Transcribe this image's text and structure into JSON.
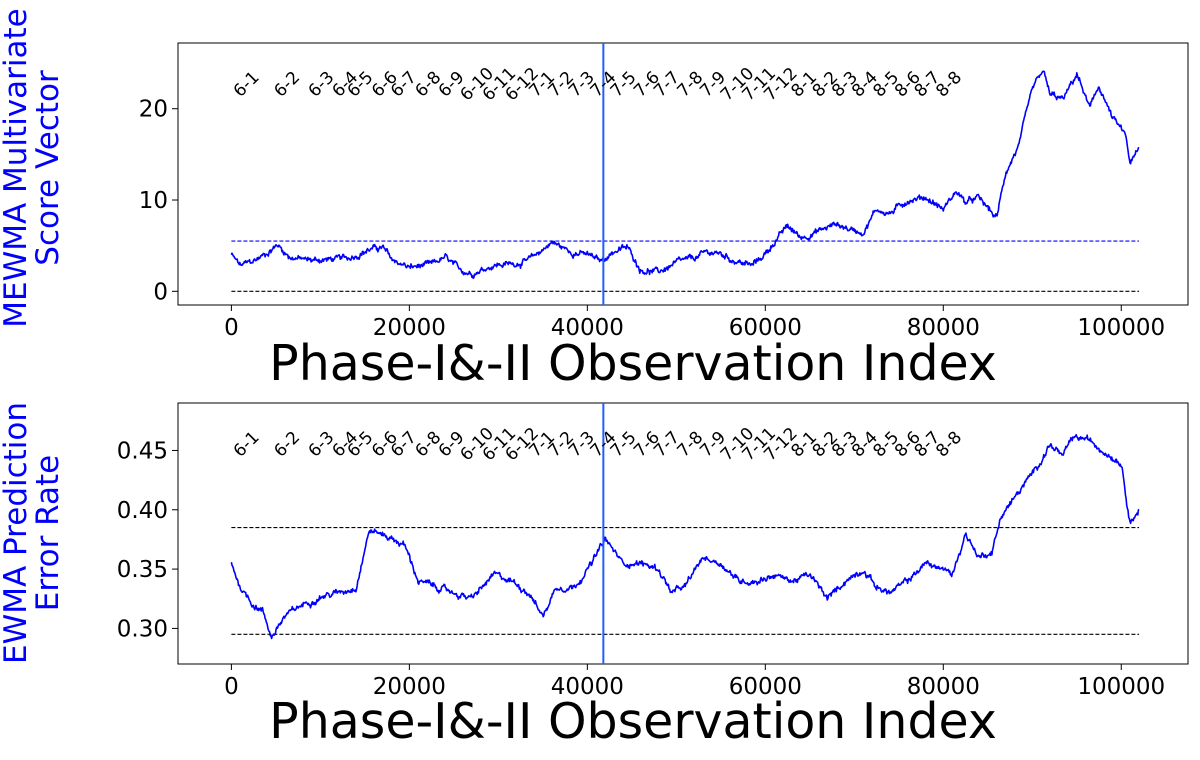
{
  "colors": {
    "series": "#0000ff",
    "ylabel": "#0000ff",
    "phase_divider": "#1f5fff",
    "limit_dashed": "#000000",
    "upper_limit_top": "#0000ff"
  },
  "month_labels": [
    "6-1",
    "6-2",
    "6-3",
    "6-4",
    "6-5",
    "6-6",
    "6-7",
    "6-8",
    "6-9",
    "6-10",
    "6-11",
    "6-12",
    "7-1",
    "7-2",
    "7-3",
    "7-4",
    "7-5",
    "7-6",
    "7-7",
    "7-8",
    "7-9",
    "7-10",
    "7-11",
    "7-12",
    "8-1",
    "8-2",
    "8-3",
    "8-4",
    "8-5",
    "8-6",
    "8-7",
    "8-8"
  ],
  "month_positions": [
    1000,
    8500,
    14800,
    19200,
    22000,
    26500,
    30000,
    34500,
    38800,
    43500,
    47600,
    51800,
    55500,
    59000,
    62800,
    66800,
    70500,
    74800,
    78500,
    82800,
    87000,
    91500,
    95500,
    99500,
    103800,
    107700,
    111300,
    115000,
    118900,
    122900,
    126500,
    130500
  ],
  "chart_data": [
    {
      "type": "line",
      "xlabel": "Phase-I&-II Observation Index",
      "ylabel_lines": [
        "MEWMA Multivariate",
        "Score Vector"
      ],
      "xlim": [
        -6000,
        107500
      ],
      "ylim": [
        -1.5,
        27.2
      ],
      "xticks": [
        0,
        20000,
        40000,
        60000,
        80000,
        100000
      ],
      "yticks": [
        0,
        10,
        20
      ],
      "ytick_labels": [
        "0",
        "10",
        "20"
      ],
      "phase_divider_x": 41800,
      "lower_limit": 0,
      "upper_limit": 5.5,
      "x_end": 102000,
      "series_anchor_points": [
        [
          0,
          4.0
        ],
        [
          1000,
          2.8
        ],
        [
          2500,
          3.3
        ],
        [
          4000,
          4.2
        ],
        [
          5200,
          5.1
        ],
        [
          6500,
          3.8
        ],
        [
          8500,
          3.4
        ],
        [
          11000,
          3.5
        ],
        [
          13000,
          3.6
        ],
        [
          15500,
          4.6
        ],
        [
          17000,
          4.8
        ],
        [
          18000,
          3.5
        ],
        [
          20000,
          2.6
        ],
        [
          22500,
          2.9
        ],
        [
          24000,
          3.7
        ],
        [
          25500,
          2.4
        ],
        [
          27000,
          2.0
        ],
        [
          29500,
          2.9
        ],
        [
          31500,
          3.0
        ],
        [
          33500,
          3.4
        ],
        [
          34500,
          4.2
        ],
        [
          36000,
          5.4
        ],
        [
          38000,
          4.4
        ],
        [
          40000,
          4.0
        ],
        [
          41500,
          3.3
        ],
        [
          43000,
          4.4
        ],
        [
          44500,
          4.8
        ],
        [
          46000,
          2.4
        ],
        [
          48000,
          2.1
        ],
        [
          50000,
          3.1
        ],
        [
          52000,
          3.6
        ],
        [
          53500,
          4.3
        ],
        [
          55000,
          4.1
        ],
        [
          56500,
          3.4
        ],
        [
          58500,
          2.8
        ],
        [
          60000,
          4.1
        ],
        [
          61500,
          6.0
        ],
        [
          62500,
          7.1
        ],
        [
          64000,
          5.9
        ],
        [
          66000,
          6.6
        ],
        [
          68000,
          7.4
        ],
        [
          69500,
          6.8
        ],
        [
          71000,
          6.5
        ],
        [
          72500,
          9.0
        ],
        [
          74000,
          8.5
        ],
        [
          76000,
          10.0
        ],
        [
          78000,
          10.3
        ],
        [
          80000,
          9.0
        ],
        [
          81500,
          11.0
        ],
        [
          82500,
          9.7
        ],
        [
          84000,
          10.2
        ],
        [
          86000,
          8.0
        ],
        [
          87000,
          13.0
        ],
        [
          88500,
          16.0
        ],
        [
          90000,
          22.0
        ],
        [
          91200,
          24.2
        ],
        [
          92000,
          21.5
        ],
        [
          93500,
          21.0
        ],
        [
          95000,
          23.8
        ],
        [
          96500,
          20.0
        ],
        [
          97500,
          22.5
        ],
        [
          99000,
          19.0
        ],
        [
          100500,
          17.0
        ],
        [
          101000,
          14.0
        ],
        [
          102000,
          15.5
        ]
      ]
    },
    {
      "type": "line",
      "xlabel": "Phase-I&-II Observation Index",
      "ylabel_lines": [
        "EWMA Prediction",
        "Error Rate"
      ],
      "xlim": [
        -6000,
        107500
      ],
      "ylim": [
        0.27,
        0.49
      ],
      "xticks": [
        0,
        20000,
        40000,
        60000,
        80000,
        100000
      ],
      "yticks": [
        0.3,
        0.35,
        0.4,
        0.45
      ],
      "ytick_labels": [
        "0.30",
        "0.35",
        "0.40",
        "0.45"
      ],
      "phase_divider_x": 41800,
      "lower_limit": 0.295,
      "upper_limit": 0.385,
      "x_end": 102000,
      "series_anchor_points": [
        [
          0,
          0.355
        ],
        [
          1000,
          0.335
        ],
        [
          2500,
          0.32
        ],
        [
          3500,
          0.315
        ],
        [
          4500,
          0.293
        ],
        [
          6000,
          0.31
        ],
        [
          8000,
          0.32
        ],
        [
          10000,
          0.327
        ],
        [
          12000,
          0.33
        ],
        [
          14000,
          0.335
        ],
        [
          15500,
          0.383
        ],
        [
          17500,
          0.378
        ],
        [
          19500,
          0.37
        ],
        [
          21000,
          0.34
        ],
        [
          23000,
          0.335
        ],
        [
          25000,
          0.33
        ],
        [
          27000,
          0.325
        ],
        [
          29500,
          0.345
        ],
        [
          31500,
          0.34
        ],
        [
          33500,
          0.33
        ],
        [
          35000,
          0.31
        ],
        [
          36500,
          0.335
        ],
        [
          38500,
          0.335
        ],
        [
          40500,
          0.355
        ],
        [
          42000,
          0.375
        ],
        [
          44000,
          0.355
        ],
        [
          46000,
          0.355
        ],
        [
          48000,
          0.35
        ],
        [
          49500,
          0.33
        ],
        [
          51000,
          0.335
        ],
        [
          53000,
          0.36
        ],
        [
          55000,
          0.355
        ],
        [
          57000,
          0.34
        ],
        [
          59000,
          0.34
        ],
        [
          61000,
          0.345
        ],
        [
          63000,
          0.34
        ],
        [
          65000,
          0.345
        ],
        [
          67000,
          0.325
        ],
        [
          69000,
          0.34
        ],
        [
          71000,
          0.35
        ],
        [
          72500,
          0.335
        ],
        [
          74000,
          0.33
        ],
        [
          76000,
          0.34
        ],
        [
          78000,
          0.355
        ],
        [
          80000,
          0.35
        ],
        [
          81000,
          0.345
        ],
        [
          82500,
          0.38
        ],
        [
          84000,
          0.36
        ],
        [
          85500,
          0.365
        ],
        [
          86500,
          0.395
        ],
        [
          88000,
          0.41
        ],
        [
          90000,
          0.43
        ],
        [
          92000,
          0.455
        ],
        [
          93500,
          0.445
        ],
        [
          94500,
          0.46
        ],
        [
          96000,
          0.46
        ],
        [
          98000,
          0.45
        ],
        [
          100000,
          0.44
        ],
        [
          101000,
          0.39
        ],
        [
          102000,
          0.4
        ]
      ]
    }
  ]
}
